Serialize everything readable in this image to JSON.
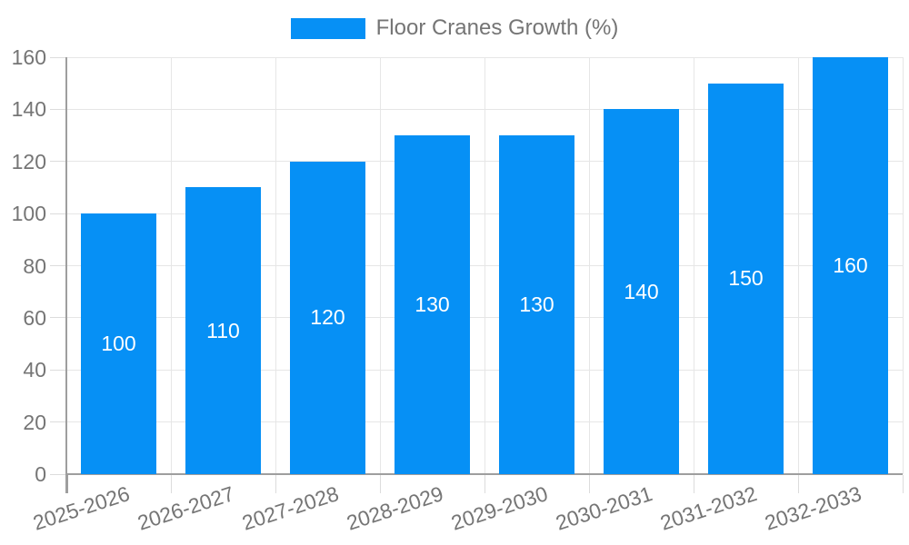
{
  "legend": {
    "label": "Floor Cranes Growth (%)"
  },
  "chart_data": {
    "type": "bar",
    "title": "",
    "legend_label": "Floor Cranes Growth (%)",
    "legend_position": "top-center",
    "categories": [
      "2025-2026",
      "2026-2027",
      "2027-2028",
      "2028-2029",
      "2029-2030",
      "2030-2031",
      "2031-2032",
      "2032-2033"
    ],
    "series": [
      {
        "name": "Floor Cranes Growth (%)",
        "values": [
          100,
          110,
          120,
          130,
          130,
          140,
          150,
          160
        ]
      }
    ],
    "values": [
      100,
      110,
      120,
      130,
      130,
      140,
      150,
      160
    ],
    "bar_label_position": "inside-center",
    "xlabel": "",
    "ylabel": "",
    "ylim": [
      0,
      160
    ],
    "yticks": [
      0,
      20,
      40,
      60,
      80,
      100,
      120,
      140,
      160
    ],
    "grid": true,
    "x_label_rotation_deg": -18,
    "colors": {
      "bar": "#0690F5",
      "bar_label": "#ffffff",
      "grid": "#e6e6e6",
      "tick": "#dcdcdc",
      "axis": "#9e9e9e",
      "text": "#757575",
      "background": "#ffffff"
    }
  }
}
